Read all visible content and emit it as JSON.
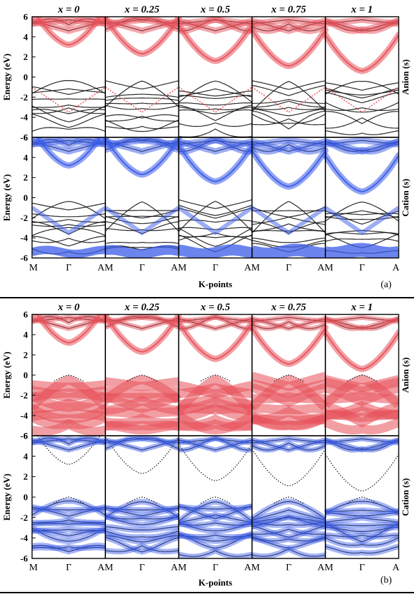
{
  "figure": {
    "energy_ylabel": "Energy (eV)",
    "xlabel": "K-points",
    "k_labels": [
      "M",
      "Γ",
      "A"
    ],
    "y_ticks": [
      "6",
      "4",
      "2",
      "0",
      "-2",
      "-4",
      "-6"
    ],
    "colors": {
      "anion": "#e8505a",
      "cation": "#3a5be8",
      "band": "#111111"
    }
  },
  "panels": [
    {
      "label": "(a)",
      "columns": [
        "x = 0",
        "x = 0.25",
        "x = 0.5",
        "x = 0.75",
        "x = 1"
      ],
      "rows": [
        {
          "side_label": "Anion (s)",
          "projection": "anion"
        },
        {
          "side_label": "Cation (s)",
          "projection": "cation"
        }
      ]
    },
    {
      "label": "(b)",
      "columns": [
        "x = 0",
        "x = 0.25",
        "x = 0.5",
        "x = 0.75",
        "x = 1"
      ],
      "rows": [
        {
          "side_label": "Anion (s)",
          "projection": "anion"
        },
        {
          "side_label": "Cation (s)",
          "projection": "cation"
        }
      ]
    }
  ],
  "chart_data": {
    "type": "line",
    "subplots": "band structure along M–Γ–A for composition x",
    "x": [
      "M",
      "Γ",
      "A"
    ],
    "compositions": [
      0,
      0.25,
      0.5,
      0.75,
      1
    ],
    "ylim": [
      -6,
      6
    ],
    "conduction_band_minimum_at_gamma": [
      3.2,
      2.3,
      1.6,
      1.1,
      0.6
    ],
    "valence_band_maximum_at_gamma": 0
  }
}
